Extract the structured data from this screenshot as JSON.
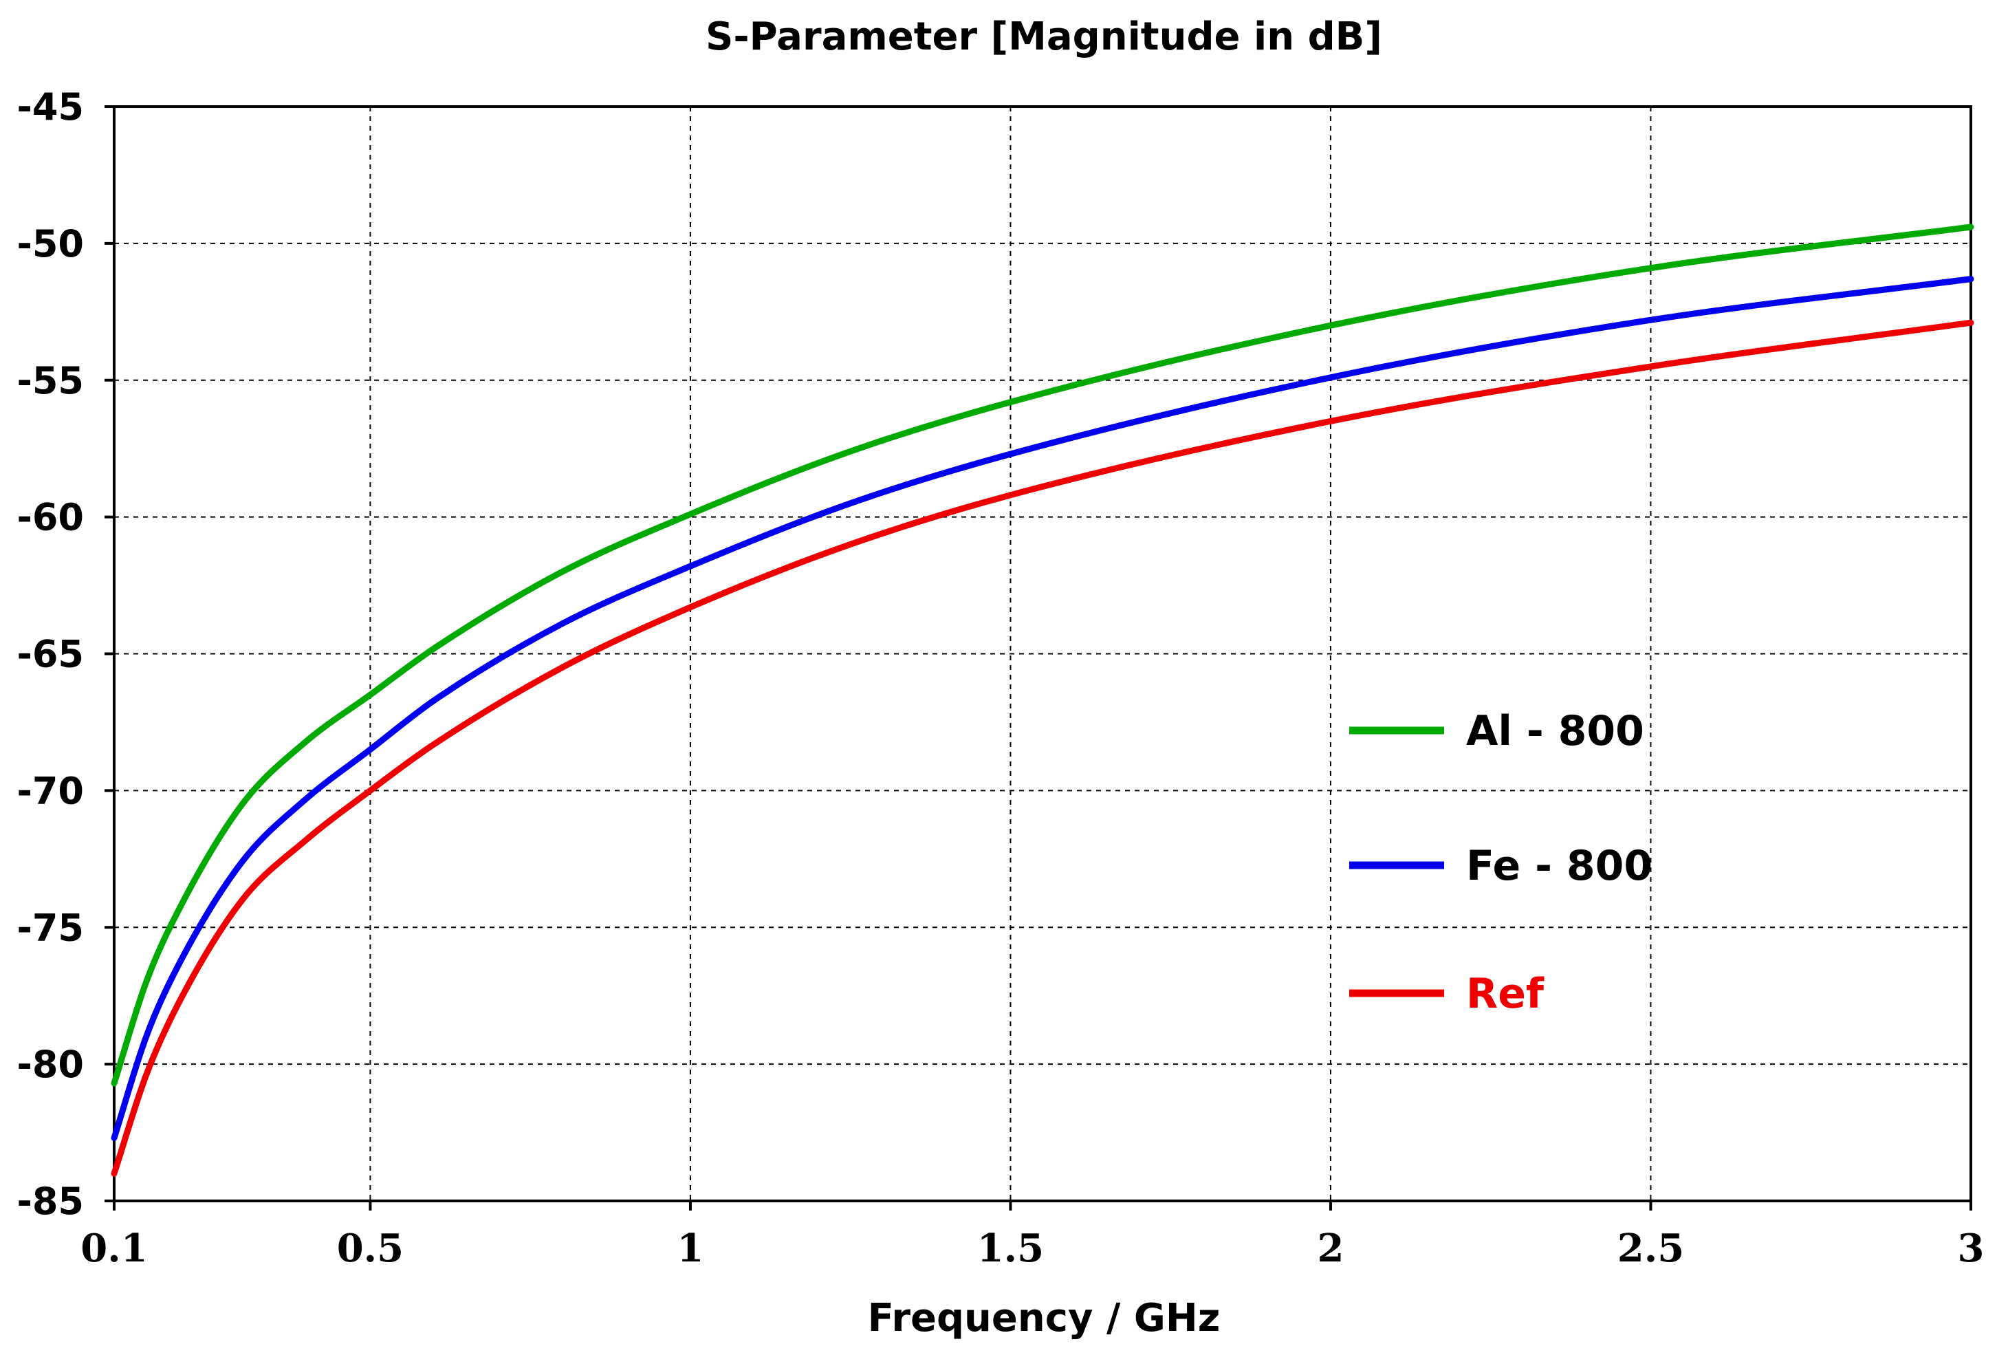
{
  "chart_data": {
    "type": "line",
    "title": "S-Parameter [Magnitude in dB]",
    "xlabel": "Frequency / GHz",
    "ylabel": "",
    "xlim": [
      0.1,
      3
    ],
    "ylim": [
      -85,
      -45
    ],
    "xticks": [
      0.1,
      0.5,
      1,
      1.5,
      2,
      2.5,
      3
    ],
    "xtick_labels": [
      "0.1",
      "0.5",
      "1",
      "1.5",
      "2",
      "2.5",
      "3"
    ],
    "yticks": [
      -45,
      -50,
      -55,
      -60,
      -65,
      -70,
      -75,
      -80,
      -85
    ],
    "ytick_labels": [
      "-45",
      "-50",
      "-55",
      "-60",
      "-65",
      "-70",
      "-75",
      "-80",
      "-85"
    ],
    "grid": true,
    "legend_position": "center-right",
    "x": [
      0.1,
      0.15,
      0.2,
      0.3,
      0.4,
      0.5,
      0.6,
      0.8,
      1.0,
      1.25,
      1.5,
      2.0,
      2.5,
      3.0
    ],
    "series": [
      {
        "name": "Al - 800",
        "color": "#00aa00",
        "values": [
          -80.7,
          -77.0,
          -74.4,
          -70.5,
          -68.2,
          -66.5,
          -64.8,
          -62.0,
          -59.9,
          -57.6,
          -55.8,
          -53.0,
          -50.9,
          -49.4
        ]
      },
      {
        "name": "Fe - 800",
        "color": "#0000ee",
        "values": [
          -82.7,
          -79.0,
          -76.4,
          -72.6,
          -70.3,
          -68.5,
          -66.7,
          -63.9,
          -61.8,
          -59.5,
          -57.7,
          -54.9,
          -52.8,
          -51.3
        ]
      },
      {
        "name": "Ref",
        "color": "#ee0000",
        "values": [
          -84.0,
          -80.4,
          -77.8,
          -74.0,
          -71.8,
          -70.0,
          -68.3,
          -65.5,
          -63.3,
          -61.0,
          -59.2,
          -56.5,
          -54.5,
          -52.9
        ]
      }
    ]
  }
}
